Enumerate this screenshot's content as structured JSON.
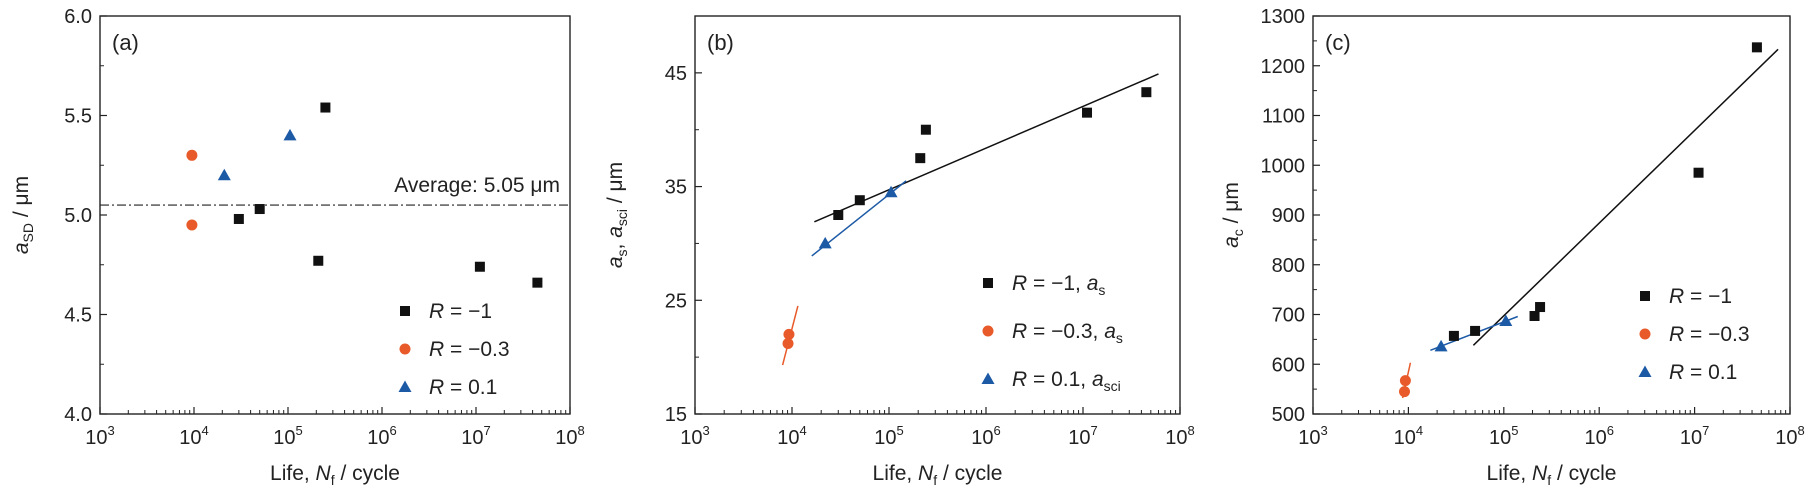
{
  "chart_data": [
    {
      "panel": "(a)",
      "type": "scatter",
      "x_scale": "log",
      "xlim": [
        1000,
        100000000
      ],
      "ylim": [
        4.0,
        6.0
      ],
      "yticks": [
        "4.0",
        "4.5",
        "5.0",
        "5.5",
        "6.0"
      ],
      "xlabel": {
        "pre": "Life, ",
        "var": "N",
        "sub": "f",
        "post": " / cycle"
      },
      "ylabel": {
        "var": "a",
        "sub": "SD",
        "post": " / μm"
      },
      "reference_line": {
        "y": 5.05,
        "label": "Average: 5.05 μm"
      },
      "series": [
        {
          "name": "R = −1",
          "marker": "square",
          "color": "#111111",
          "points": [
            [
              30000,
              4.98
            ],
            [
              50000,
              5.03
            ],
            [
              210000,
              4.77
            ],
            [
              250000,
              5.54
            ],
            [
              11000000,
              4.74
            ],
            [
              45000000,
              4.66
            ]
          ]
        },
        {
          "name": "R = −0.3",
          "marker": "circle",
          "color": "#e85a2a",
          "points": [
            [
              9500,
              5.3
            ],
            [
              9500,
              4.95
            ]
          ]
        },
        {
          "name": "R = 0.1",
          "marker": "triangle",
          "color": "#1d5aa6",
          "points": [
            [
              21000,
              5.2
            ],
            [
              105000,
              5.4
            ]
          ]
        }
      ],
      "legend": {
        "position": "bottom-right",
        "entries": [
          {
            "pre": "R",
            "mid": " = −1",
            "var2": "",
            "sub2": ""
          },
          {
            "pre": "R",
            "mid": " = −0.3",
            "var2": "",
            "sub2": ""
          },
          {
            "pre": "R",
            "mid": " = 0.1",
            "var2": "",
            "sub2": ""
          }
        ]
      }
    },
    {
      "panel": "(b)",
      "type": "scatter",
      "x_scale": "log",
      "xlim": [
        1000,
        100000000
      ],
      "ylim": [
        15,
        50
      ],
      "yticks": [
        "15",
        "25",
        "35",
        "45"
      ],
      "xlabel": {
        "pre": "Life, ",
        "var": "N",
        "sub": "f",
        "post": " / cycle"
      },
      "ylabel": {
        "var": "a",
        "sub": "s",
        "mid": ", ",
        "var2": "a",
        "sub2": "sci",
        "post": " / μm"
      },
      "series": [
        {
          "name": "R = −1, as",
          "marker": "square",
          "color": "#111111",
          "points": [
            [
              30000,
              32.5
            ],
            [
              50000,
              33.8
            ],
            [
              210000,
              37.5
            ],
            [
              240000,
              40.0
            ],
            [
              11000000,
              41.5
            ],
            [
              45000000,
              43.3
            ]
          ],
          "fit": [
            [
              17000,
              31.9
            ],
            [
              60000000,
              44.9
            ]
          ]
        },
        {
          "name": "R = −0.3, as",
          "marker": "circle",
          "color": "#e85a2a",
          "points": [
            [
              9300,
              22.0
            ],
            [
              9100,
              21.2
            ]
          ],
          "fit": [
            [
              8000,
              19.3
            ],
            [
              11500,
              24.5
            ]
          ]
        },
        {
          "name": "R = 0.1, asci",
          "marker": "triangle",
          "color": "#1d5aa6",
          "points": [
            [
              22000,
              30.0
            ],
            [
              105000,
              34.5
            ]
          ],
          "fit": [
            [
              16000,
              28.9
            ],
            [
              150000,
              35.5
            ]
          ]
        }
      ],
      "legend": {
        "position": "bottom-right",
        "entries": [
          {
            "pre": "R",
            "mid": " = −1, ",
            "var2": "a",
            "sub2": "s"
          },
          {
            "pre": "R",
            "mid": " = −0.3, ",
            "var2": "a",
            "sub2": "s"
          },
          {
            "pre": "R",
            "mid": " = 0.1, ",
            "var2": "a",
            "sub2": "sci"
          }
        ]
      }
    },
    {
      "panel": "(c)",
      "type": "scatter",
      "x_scale": "log",
      "xlim": [
        1000,
        100000000
      ],
      "ylim": [
        500,
        1300
      ],
      "yticks": [
        "500",
        "600",
        "700",
        "800",
        "900",
        "1000",
        "1100",
        "1200",
        "1300"
      ],
      "xlabel": {
        "pre": "Life, ",
        "var": "N",
        "sub": "f",
        "post": " / cycle"
      },
      "ylabel": {
        "var": "a",
        "sub": "c",
        "post": " / μm"
      },
      "series": [
        {
          "name": "R = −1",
          "marker": "square",
          "color": "#111111",
          "points": [
            [
              30000,
              657
            ],
            [
              50000,
              667
            ],
            [
              210000,
              697
            ],
            [
              240000,
              715
            ],
            [
              11000000,
              985
            ],
            [
              45000000,
              1237
            ]
          ],
          "fit": [
            [
              48000,
              638
            ],
            [
              75000000,
              1233
            ]
          ]
        },
        {
          "name": "R = −0.3",
          "marker": "circle",
          "color": "#e85a2a",
          "points": [
            [
              9300,
              567
            ],
            [
              9100,
              545
            ]
          ],
          "fit": [
            [
              8700,
              532
            ],
            [
              10500,
              603
            ]
          ]
        },
        {
          "name": "R = 0.1",
          "marker": "triangle",
          "color": "#1d5aa6",
          "points": [
            [
              22000,
              636
            ],
            [
              105000,
              687
            ]
          ],
          "fit": [
            [
              17000,
              628
            ],
            [
              140000,
              696
            ]
          ]
        }
      ],
      "legend": {
        "position": "bottom-right",
        "entries": [
          {
            "pre": "R",
            "mid": " = −1",
            "var2": "",
            "sub2": ""
          },
          {
            "pre": "R",
            "mid": " = −0.3",
            "var2": "",
            "sub2": ""
          },
          {
            "pre": "R",
            "mid": " = 0.1",
            "var2": "",
            "sub2": ""
          }
        ]
      }
    }
  ]
}
